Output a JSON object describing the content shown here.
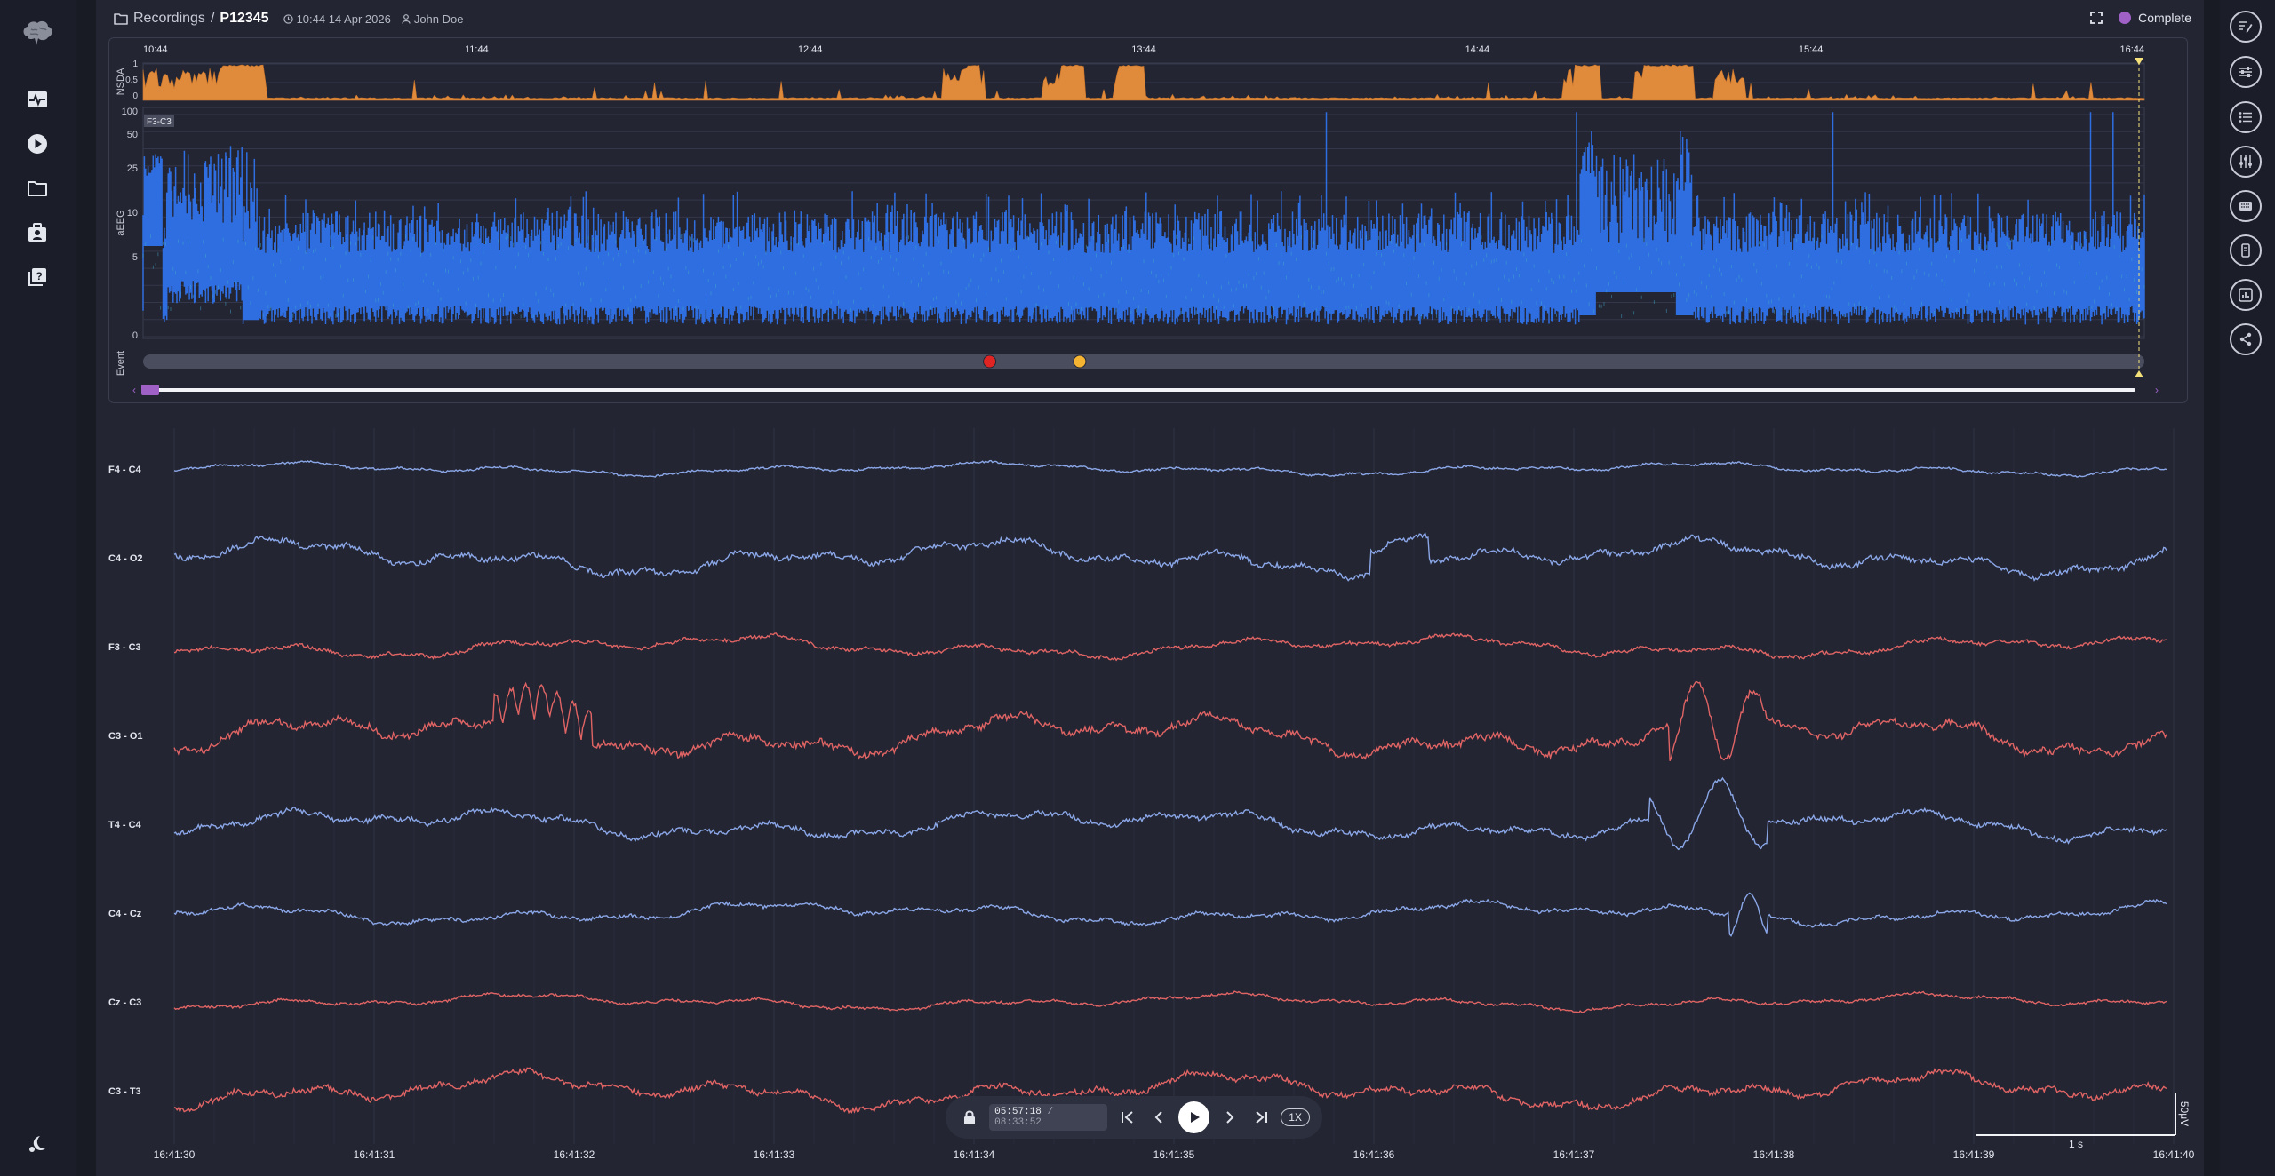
{
  "header": {
    "breadcrumb_root": "Recordings",
    "separator": "/",
    "patient_id": "P12345",
    "recording_start": "10:44 14 Apr 2026",
    "user": "John Doe",
    "status": "Complete"
  },
  "trend": {
    "time_ticks": [
      "10:44",
      "11:44",
      "12:44",
      "13:44",
      "14:44",
      "15:44",
      "16:44"
    ],
    "nsda_label": "NSDA",
    "nsda_ticks": [
      "1",
      "0.5",
      "0"
    ],
    "aeeg_label": "aEEG",
    "aeeg_ticks": [
      "100",
      "50",
      "25",
      "10",
      "5",
      "0"
    ],
    "channel_tag": "F3-C3",
    "event_label": "Event",
    "event_colors": [
      "#e02424",
      "#f5b533"
    ]
  },
  "eeg": {
    "channels": [
      "F4 - C4",
      "C4 - O2",
      "F3 - C3",
      "C3 - O1",
      "T4 - C4",
      "C4 - Cz",
      "Cz - C3",
      "C3 - T3"
    ],
    "time_ticks": [
      "16:41:30",
      "16:41:31",
      "16:41:32",
      "16:41:33",
      "16:41:34",
      "16:41:35",
      "16:41:36",
      "16:41:37",
      "16:41:38",
      "16:41:39",
      "16:41:40"
    ],
    "scale_time": "1 s",
    "scale_amp": "50μV"
  },
  "transport": {
    "current_time": "05:57:18",
    "separator": " / ",
    "total_time": "08:33:52",
    "speed": "1X"
  }
}
